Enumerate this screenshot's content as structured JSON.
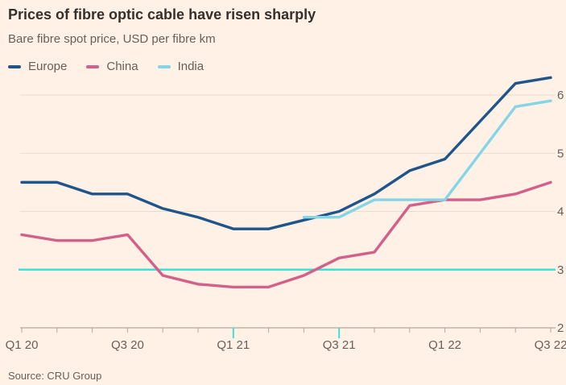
{
  "header": {
    "title": "Prices of fibre optic cable have risen sharply",
    "subtitle": "Bare fibre spot price, USD per fibre km"
  },
  "legend": {
    "items": [
      {
        "label": "Europe"
      },
      {
        "label": "China"
      },
      {
        "label": "India"
      }
    ]
  },
  "footer": {
    "source": "Source: CRU Group"
  },
  "colors": {
    "background": "#fff1e5",
    "title_text": "#33302e",
    "secondary_text": "#66605c",
    "grid": "#e8dccf",
    "axis": "#b3a89d",
    "highlight": "#3ee0d2"
  },
  "chart_data": {
    "type": "line",
    "title": "Prices of fibre optic cable have risen sharply",
    "subtitle": "Bare fibre spot price, USD per fibre km",
    "xlabel": "",
    "ylabel": "USD per fibre km",
    "x": [
      "Jan 20",
      "Mar 20",
      "May 20",
      "Jul 20",
      "Sep 20",
      "Nov 20",
      "Jan 21",
      "Mar 21",
      "May 21",
      "Jul 21",
      "Sep 21",
      "Nov 21",
      "Jan 22",
      "Mar 22",
      "May 22",
      "Jul 22"
    ],
    "x_axis": {
      "labels": [
        "Q1 20",
        "Q3 20",
        "Q1 21",
        "Q3 21",
        "Q1 22",
        "Q3 22"
      ],
      "label_indices": [
        0,
        3,
        6,
        9,
        12,
        15
      ],
      "highlighted_tick_indices": [
        6,
        9
      ],
      "tick_count": 16
    },
    "y_axis": {
      "ticks": [
        2,
        3,
        4,
        5,
        6
      ],
      "baseline": 2,
      "range": [
        2,
        6.4
      ],
      "side": "right"
    },
    "grid": "horizontal",
    "legend_position": "top",
    "series": [
      {
        "name": "Europe",
        "color": "#1e558a",
        "start_index": 0,
        "values": [
          4.5,
          4.5,
          4.3,
          4.3,
          4.05,
          3.9,
          3.7,
          3.7,
          3.85,
          4.0,
          4.3,
          4.7,
          4.9,
          5.55,
          6.2,
          6.3
        ]
      },
      {
        "name": "China",
        "color": "#d2608a",
        "start_index": 0,
        "values": [
          3.6,
          3.5,
          3.5,
          3.6,
          2.9,
          2.75,
          2.7,
          2.7,
          2.9,
          3.2,
          3.3,
          4.1,
          4.2,
          4.2,
          4.3,
          4.5
        ]
      },
      {
        "name": "India",
        "color": "#84d5e5",
        "start_index": 8,
        "values": [
          3.9,
          3.9,
          4.2,
          4.2,
          4.2,
          5.0,
          5.8,
          5.9
        ]
      }
    ],
    "reference_line": {
      "value": 3.0,
      "color": "#3ee0d2"
    }
  }
}
